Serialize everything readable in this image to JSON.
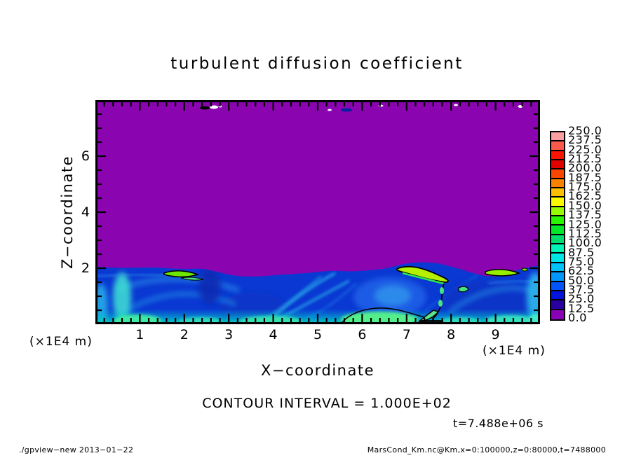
{
  "title": "turbulent diffusion coefficient",
  "axes": {
    "x_label": "X−coordinate",
    "y_label": "Z−coordinate",
    "x_unit_left": "(×1E4 m)",
    "x_unit_right": "(×1E4 m)",
    "x_ticks": [
      1,
      2,
      3,
      4,
      5,
      6,
      7,
      8,
      9
    ],
    "y_ticks": [
      2,
      4,
      6
    ],
    "xlim": [
      0,
      10
    ],
    "ylim": [
      0,
      8
    ],
    "x_minor_step": 0.2,
    "y_minor_step": 0.5
  },
  "colorbar": {
    "labels_top_to_bottom": [
      "250.0",
      "237.5",
      "225.0",
      "212.5",
      "200.0",
      "187.5",
      "175.0",
      "162.5",
      "150.0",
      "137.5",
      "125.0",
      "112.5",
      "100.0",
      "87.5",
      "75.0",
      "62.5",
      "50.0",
      "37.5",
      "25.0",
      "12.5",
      "0.0"
    ],
    "colors_top_to_bottom": [
      "#f9a0a0",
      "#fb5a4b",
      "#fb1400",
      "#e10000",
      "#fb4600",
      "#fb8200",
      "#fbbe00",
      "#fbfa00",
      "#96fb00",
      "#28f500",
      "#00e628",
      "#00dc6e",
      "#00f5b4",
      "#00e6e6",
      "#00c3fb",
      "#0096fb",
      "#0055fb",
      "#0014dc",
      "#2800a0",
      "#8a00b4"
    ]
  },
  "annotations": {
    "contour_interval": "CONTOUR INTERVAL = 1.000E+02",
    "time_stamp": "t=7.488e+06 s"
  },
  "footer": {
    "left": "./gpview−new  2013−01−22",
    "right": "MarsCond_Km.nc@Km,x=0:100000,z=0:80000,t=7488000"
  },
  "palette": {
    "field_zero_purple": "#8a04b0",
    "field_base_blue": "#0a38d2",
    "frame_black": "#000000"
  },
  "chart_data": {
    "type": "heatmap",
    "title": "turbulent diffusion coefficient",
    "xlabel": "X−coordinate (×1E4 m)",
    "ylabel": "Z−coordinate (×1E4 m)",
    "xlim": [
      0,
      10
    ],
    "ylim": [
      0,
      8
    ],
    "grid": false,
    "legend_position": "right-colorbar",
    "contour_interval": "1.000E+02",
    "time": "t=7.488e+06 s",
    "levels": [
      0.0,
      12.5,
      25.0,
      37.5,
      50.0,
      62.5,
      75.0,
      87.5,
      100.0,
      112.5,
      125.0,
      137.5,
      150.0,
      162.5,
      175.0,
      187.5,
      200.0,
      212.5,
      225.0,
      237.5,
      250.0
    ],
    "level_colors_low_to_high": [
      "#8a00b4",
      "#2800a0",
      "#0014dc",
      "#0055fb",
      "#0096fb",
      "#00c3fb",
      "#00e6e6",
      "#00f5b4",
      "#00dc6e",
      "#00e628",
      "#28f500",
      "#96fb00",
      "#fbfa00",
      "#fbbe00",
      "#fb8200",
      "#fb4600",
      "#e10000",
      "#fb1400",
      "#fb5a4b",
      "#f9a0a0"
    ],
    "field_summary": "Coefficient is ~0 (purple, lowest bin 0–12.5) everywhere above z≈2×1E4 m. Below z≈2 a turbulent boundary layer shows values mostly 12.5–75 (blues) with cyan swirl/plume structures, a cyan-green band near the surface, and localized maxima of ~100–150 (green/yellow streaks outlined by black contours) near x≈1.8–2.3, x≈3.5–4.7 (surface mound), x≈6.9–7.9 (slanted streak descending to surface), and x≈8.8–9.6. Tiny near-zero specks appear at the model top near x≈2.5, 5.5 and 8."
  }
}
